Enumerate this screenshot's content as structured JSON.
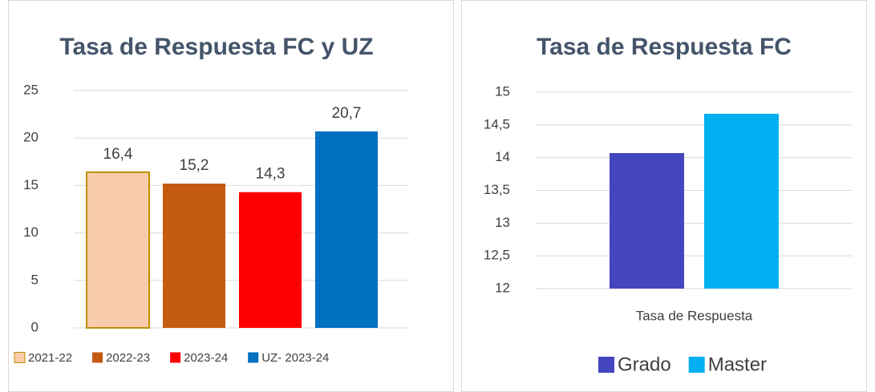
{
  "chart_data": [
    {
      "type": "bar",
      "title": "Tasa de Respuesta FC y UZ",
      "categories": [
        null
      ],
      "series": [
        {
          "name": "2021-22",
          "color": "#f8cbad",
          "edgecolor": "#bf9000",
          "values": [
            16.4
          ],
          "value_labels": [
            "16,4"
          ]
        },
        {
          "name": "2022-23",
          "color": "#c55a11",
          "values": [
            15.2
          ],
          "value_labels": [
            "15,2"
          ]
        },
        {
          "name": "2023-24",
          "color": "#ff0000",
          "values": [
            14.3
          ],
          "value_labels": [
            "14,3"
          ]
        },
        {
          "name": "UZ- 2023-24",
          "color": "#0070c0",
          "values": [
            20.7
          ],
          "value_labels": [
            "20,7"
          ]
        }
      ],
      "ylim": [
        0,
        25
      ],
      "yticks": [
        0,
        5,
        10,
        15,
        20,
        25
      ],
      "grid": true,
      "legend": "bottom"
    },
    {
      "type": "bar",
      "title": "Tasa de Respuesta FC",
      "categories": [
        "Tasa de Respuesta"
      ],
      "series": [
        {
          "name": "Grado",
          "color": "#4446c0",
          "values": [
            14.07
          ]
        },
        {
          "name": "Master",
          "color": "#00b0f0",
          "values": [
            14.67
          ]
        }
      ],
      "ylim": [
        12,
        15
      ],
      "yticks": [
        12,
        {
          "value": 12.5,
          "label": "12,5"
        },
        13,
        {
          "value": 13.5,
          "label": "13,5"
        },
        14,
        {
          "value": 14.5,
          "label": "14,5"
        },
        15
      ],
      "grid": true,
      "legend": "bottom"
    }
  ]
}
